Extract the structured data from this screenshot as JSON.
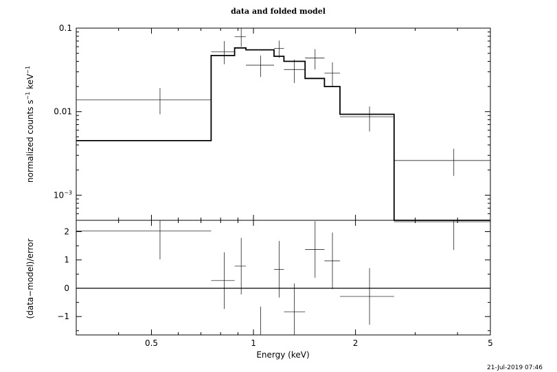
{
  "title": "data and folded model",
  "timestamp": "21-Jul-2019 07:46",
  "colors": {
    "ink": "#000000",
    "background": "#ffffff"
  },
  "chart_data": [
    {
      "type": "scatter",
      "panel": "top",
      "title": "data and folded model",
      "xlabel": "Energy (keV)",
      "ylabel_main": "normalized counts s",
      "ylabel_sup1": "−1",
      "ylabel_mid": " keV",
      "ylabel_sup2": "−1",
      "xscale": "log",
      "yscale": "log",
      "xlim": [
        0.3,
        5.0
      ],
      "ylim": [
        0.0005,
        0.1
      ],
      "yticks": [
        {
          "value": 0.1,
          "label": "0.1"
        },
        {
          "value": 0.01,
          "label": "0.01"
        },
        {
          "value": 0.001,
          "base": "10",
          "exp": "−3"
        }
      ],
      "series": [
        {
          "style": "crosses",
          "points": [
            {
              "xlo": 0.3,
              "xhi": 0.75,
              "x": 0.53,
              "y": 0.0138,
              "ylo": 0.0093,
              "yhi": 0.0192
            },
            {
              "xlo": 0.75,
              "xhi": 0.88,
              "x": 0.82,
              "y": 0.052,
              "ylo": 0.037,
              "yhi": 0.07
            },
            {
              "xlo": 0.88,
              "xhi": 0.95,
              "x": 0.92,
              "y": 0.079,
              "ylo": 0.06,
              "yhi": 0.1
            },
            {
              "xlo": 0.95,
              "xhi": 1.15,
              "x": 1.05,
              "y": 0.036,
              "ylo": 0.026,
              "yhi": 0.047
            },
            {
              "xlo": 1.15,
              "xhi": 1.23,
              "x": 1.19,
              "y": 0.057,
              "ylo": 0.044,
              "yhi": 0.071
            },
            {
              "xlo": 1.23,
              "xhi": 1.42,
              "x": 1.32,
              "y": 0.032,
              "ylo": 0.022,
              "yhi": 0.042
            },
            {
              "xlo": 1.42,
              "xhi": 1.62,
              "x": 1.52,
              "y": 0.044,
              "ylo": 0.032,
              "yhi": 0.056
            },
            {
              "xlo": 1.62,
              "xhi": 1.8,
              "x": 1.71,
              "y": 0.029,
              "ylo": 0.02,
              "yhi": 0.039
            },
            {
              "xlo": 1.8,
              "xhi": 2.6,
              "x": 2.2,
              "y": 0.0087,
              "ylo": 0.0058,
              "yhi": 0.0115
            },
            {
              "xlo": 2.6,
              "xhi": 5.0,
              "x": 3.9,
              "y": 0.0026,
              "ylo": 0.0017,
              "yhi": 0.0036
            }
          ]
        },
        {
          "style": "step-model",
          "edges": [
            0.3,
            0.75,
            0.88,
            0.95,
            1.15,
            1.23,
            1.42,
            1.62,
            1.8,
            2.6,
            5.0
          ],
          "values": [
            0.0045,
            0.047,
            0.058,
            0.055,
            0.046,
            0.04,
            0.025,
            0.02,
            0.0093,
            0.0005
          ]
        }
      ]
    },
    {
      "type": "scatter",
      "panel": "bottom",
      "xlabel": "Energy (keV)",
      "ylabel": "(data−model)/error",
      "xscale": "log",
      "xlim": [
        0.3,
        5.0
      ],
      "ylim": [
        -1.65,
        2.4
      ],
      "xticks": [
        {
          "value": 0.5,
          "label": "0.5"
        },
        {
          "value": 1,
          "label": "1"
        },
        {
          "value": 2,
          "label": "2"
        },
        {
          "value": 5,
          "label": "5"
        }
      ],
      "yticks": [
        {
          "value": 2,
          "label": "2"
        },
        {
          "value": 1,
          "label": "1"
        },
        {
          "value": 0,
          "label": "0"
        },
        {
          "value": -1,
          "label": "−1"
        }
      ],
      "zero_line": 0,
      "series": [
        {
          "style": "crosses",
          "points": [
            {
              "xlo": 0.3,
              "xhi": 0.75,
              "x": 0.53,
              "y": 2.02,
              "ylo": 1.02,
              "yhi": 3.0
            },
            {
              "xlo": 0.75,
              "xhi": 0.88,
              "x": 0.82,
              "y": 0.27,
              "ylo": -0.73,
              "yhi": 1.27
            },
            {
              "xlo": 0.88,
              "xhi": 0.95,
              "x": 0.92,
              "y": 0.78,
              "ylo": -0.22,
              "yhi": 1.78
            },
            {
              "xlo": 0.95,
              "xhi": 1.15,
              "x": 1.05,
              "y": -1.65,
              "ylo": -2.65,
              "yhi": -0.65
            },
            {
              "xlo": 1.15,
              "xhi": 1.23,
              "x": 1.19,
              "y": 0.67,
              "ylo": -0.33,
              "yhi": 1.67
            },
            {
              "xlo": 1.23,
              "xhi": 1.42,
              "x": 1.32,
              "y": -0.83,
              "ylo": -1.83,
              "yhi": 0.17
            },
            {
              "xlo": 1.42,
              "xhi": 1.62,
              "x": 1.52,
              "y": 1.37,
              "ylo": 0.37,
              "yhi": 2.37
            },
            {
              "xlo": 1.62,
              "xhi": 1.8,
              "x": 1.71,
              "y": 0.97,
              "ylo": -0.03,
              "yhi": 1.97
            },
            {
              "xlo": 1.8,
              "xhi": 2.6,
              "x": 2.2,
              "y": -0.29,
              "ylo": -1.29,
              "yhi": 0.71
            },
            {
              "xlo": 2.6,
              "xhi": 5.0,
              "x": 3.9,
              "y": 2.35,
              "ylo": 1.35,
              "yhi": 3.35
            }
          ]
        }
      ]
    }
  ]
}
